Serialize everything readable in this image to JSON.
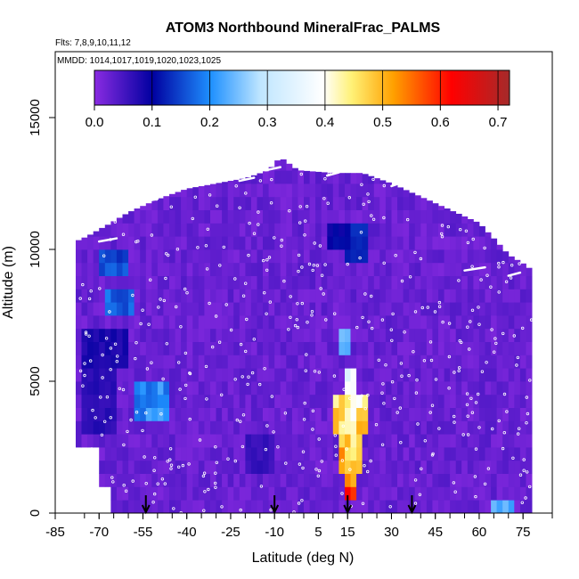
{
  "chart_data": {
    "type": "heatmap",
    "title": "ATOM3 Northbound MineralFrac_PALMS",
    "subtitle_flights": "Flts: 7,8,9,10,11,12",
    "subtitle_dates": "MMDD: 1014,1017,1019,1020,1023,1025",
    "xlabel": "Latitude (deg N)",
    "ylabel": "Altitude (m)",
    "xlim": [
      -85,
      85
    ],
    "ylim": [
      0,
      17500
    ],
    "x_ticks": [
      -85,
      -70,
      -55,
      -40,
      -25,
      -10,
      5,
      15,
      30,
      45,
      60,
      75
    ],
    "y_ticks": [
      0,
      5000,
      10000,
      15000
    ],
    "colorbar": {
      "min": 0.0,
      "max": 0.72,
      "ticks": [
        "0.0",
        "0.1",
        "0.2",
        "0.3",
        "0.4",
        "0.5",
        "0.6",
        "0.7"
      ],
      "colors": [
        "#8a2be2",
        "#0000a0",
        "#1e90ff",
        "#ffffff",
        "#ffd700",
        "#ff0000",
        "#b22222"
      ]
    },
    "arrow_latitudes": [
      -54,
      -10,
      15,
      37
    ],
    "region_values": [
      {
        "lat": [
          -70,
          -60
        ],
        "alt": [
          9000,
          10000
        ],
        "value": 0.15
      },
      {
        "lat": [
          -68,
          -58
        ],
        "alt": [
          7500,
          8500
        ],
        "value": 0.17
      },
      {
        "lat": [
          -75,
          -60
        ],
        "alt": [
          5500,
          7000
        ],
        "value": 0.08
      },
      {
        "lat": [
          -58,
          -46
        ],
        "alt": [
          3500,
          5000
        ],
        "value": 0.2
      },
      {
        "lat": [
          -75,
          -65
        ],
        "alt": [
          3000,
          5500
        ],
        "value": 0.07
      },
      {
        "lat": [
          -20,
          -10
        ],
        "alt": [
          1500,
          3000
        ],
        "value": 0.06
      },
      {
        "lat": [
          8,
          14
        ],
        "alt": [
          10000,
          11000
        ],
        "value": 0.1
      },
      {
        "lat": [
          14,
          22
        ],
        "alt": [
          9500,
          11000
        ],
        "value": 0.12
      },
      {
        "lat": [
          12,
          16
        ],
        "alt": [
          6000,
          7000
        ],
        "value": 0.25
      },
      {
        "lat": [
          14,
          18
        ],
        "alt": [
          4500,
          5500
        ],
        "value": 0.35
      },
      {
        "lat": [
          10,
          22
        ],
        "alt": [
          3000,
          4500
        ],
        "value": 0.45
      },
      {
        "lat": [
          12,
          20
        ],
        "alt": [
          1500,
          3000
        ],
        "value": 0.5
      },
      {
        "lat": [
          14,
          18
        ],
        "alt": [
          500,
          1500
        ],
        "value": 0.55
      },
      {
        "lat": [
          64,
          72
        ],
        "alt": [
          0,
          700
        ],
        "value": 0.22
      }
    ]
  }
}
